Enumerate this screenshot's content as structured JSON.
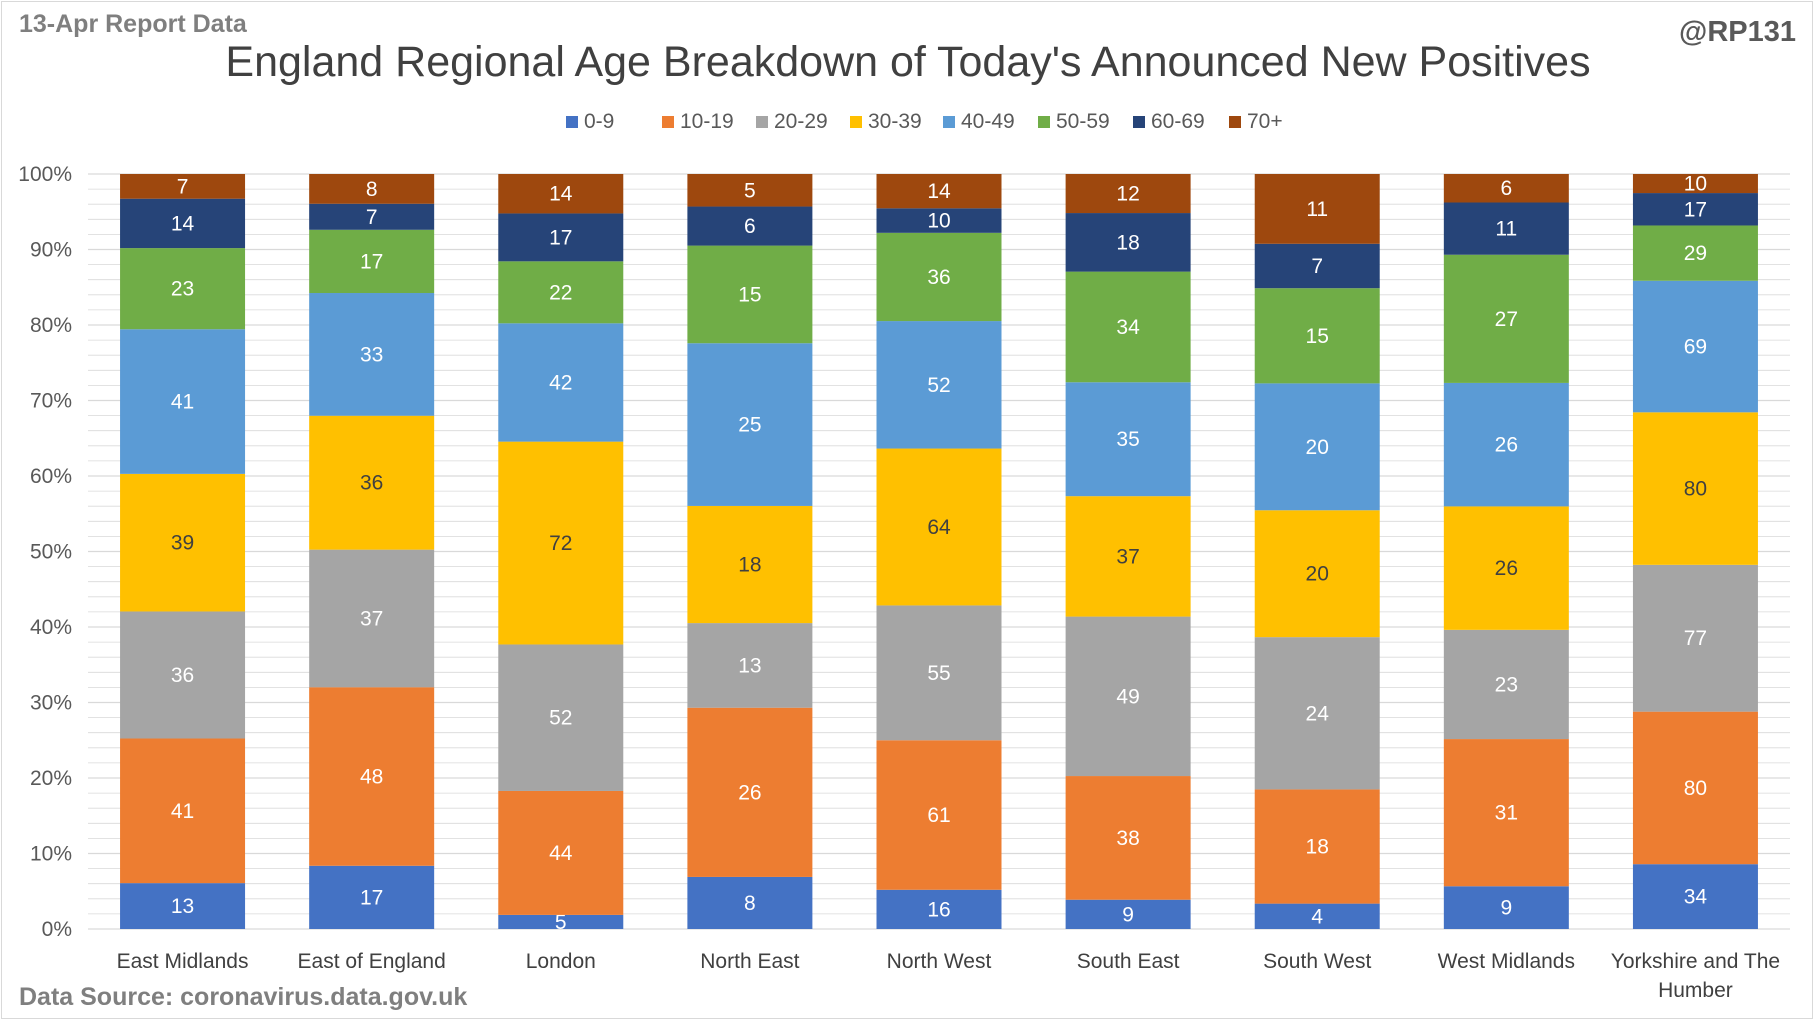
{
  "header": {
    "report_label": "13-Apr Report Data",
    "handle": "@RP131"
  },
  "footer": {
    "source": "Data Source: coronavirus.data.gov.uk"
  },
  "colors": {
    "0-9": "#4472c4",
    "10-19": "#ed7d31",
    "20-29": "#a5a5a5",
    "30-39": "#ffc000",
    "40-49": "#5b9bd5",
    "50-59": "#70ad47",
    "60-69": "#264478",
    "70+": "#9e480e",
    "gridline": "#d9d9d9",
    "label_light": "#ffffff",
    "label_dark": "#404040"
  },
  "chart_data": {
    "type": "bar",
    "stacked": "percent",
    "title": "England Regional Age Breakdown of Today's Announced New Positives",
    "xlabel": "",
    "ylabel": "",
    "ylim": [
      0,
      100
    ],
    "y_ticks": [
      "0%",
      "10%",
      "20%",
      "30%",
      "40%",
      "50%",
      "60%",
      "70%",
      "80%",
      "90%",
      "100%"
    ],
    "grid": true,
    "legend_position": "top",
    "categories": [
      "East Midlands",
      "East of England",
      "London",
      "North East",
      "North West",
      "South East",
      "South West",
      "West Midlands",
      "Yorkshire and The Humber"
    ],
    "series": [
      {
        "name": "0-9",
        "values": [
          13,
          17,
          5,
          8,
          16,
          9,
          4,
          9,
          34
        ]
      },
      {
        "name": "10-19",
        "values": [
          41,
          48,
          44,
          26,
          61,
          38,
          18,
          31,
          80
        ]
      },
      {
        "name": "20-29",
        "values": [
          36,
          37,
          52,
          13,
          55,
          49,
          24,
          23,
          77
        ]
      },
      {
        "name": "30-39",
        "values": [
          39,
          36,
          72,
          18,
          64,
          37,
          20,
          26,
          80
        ]
      },
      {
        "name": "40-49",
        "values": [
          41,
          33,
          42,
          25,
          52,
          35,
          20,
          26,
          69
        ]
      },
      {
        "name": "50-59",
        "values": [
          23,
          17,
          22,
          15,
          36,
          34,
          15,
          27,
          29
        ]
      },
      {
        "name": "60-69",
        "values": [
          14,
          7,
          17,
          6,
          10,
          18,
          7,
          11,
          17
        ]
      },
      {
        "name": "70+",
        "values": [
          7,
          8,
          14,
          5,
          14,
          12,
          11,
          6,
          10
        ]
      }
    ]
  }
}
